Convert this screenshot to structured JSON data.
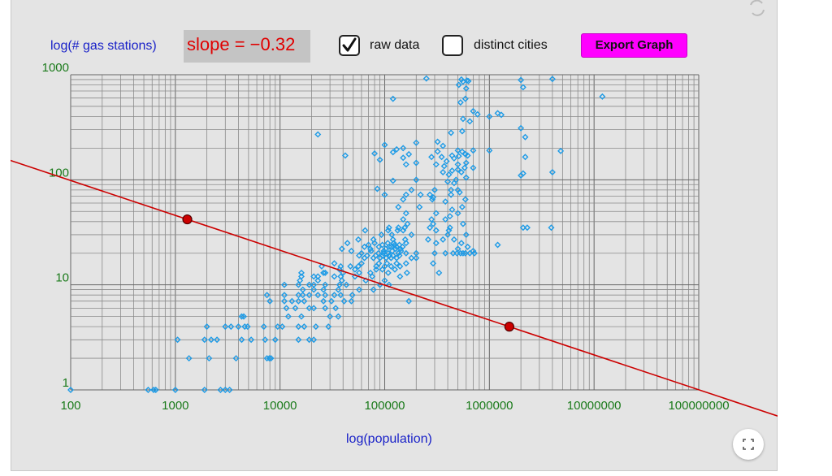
{
  "header": {
    "y_axis_title": "log(# gas stations)",
    "slope_text": "slope = −0.32",
    "raw_data_label": "raw data",
    "raw_data_checked": true,
    "distinct_cities_label": "distinct cities",
    "distinct_cities_checked": false,
    "export_label": "Export Graph"
  },
  "icons": {
    "refresh": "refresh-icon",
    "fullscreen": "fullscreen-icon",
    "check": "check-icon"
  },
  "colors": {
    "line": "#cc0000",
    "points": "#1e9be6",
    "x_ticks": "#1a7a1a",
    "y_ticks": "#1a7a1a",
    "titles": "#1a22c8",
    "slope": "#e00000",
    "export_button": "#ff00ff"
  },
  "chart_data": {
    "type": "scatter",
    "xlabel": "log(population)",
    "ylabel": "log(# gas stations)",
    "xscale": "log",
    "yscale": "log",
    "xlim": [
      100,
      100000000
    ],
    "ylim": [
      1,
      1000
    ],
    "x_ticks": [
      "100",
      "1000",
      "10000",
      "100000",
      "1000000",
      "10000000",
      "100000000"
    ],
    "y_ticks": [
      "1",
      "10",
      "100",
      "1000"
    ],
    "grid": true,
    "slope": -0.32,
    "fit_line": {
      "points": [
        [
          1300,
          42
        ],
        [
          1550000,
          4
        ]
      ]
    },
    "points": [
      [
        100,
        1
      ],
      [
        550,
        1
      ],
      [
        620,
        1
      ],
      [
        650,
        1
      ],
      [
        1000,
        1
      ],
      [
        1900,
        1
      ],
      [
        2700,
        1
      ],
      [
        3000,
        1
      ],
      [
        3300,
        1
      ],
      [
        1350,
        2
      ],
      [
        2100,
        2
      ],
      [
        3800,
        2
      ],
      [
        7500,
        2
      ],
      [
        7900,
        2
      ],
      [
        8200,
        2
      ],
      [
        1050,
        3
      ],
      [
        1900,
        3
      ],
      [
        2200,
        3
      ],
      [
        2500,
        3
      ],
      [
        4300,
        3
      ],
      [
        5300,
        3
      ],
      [
        7200,
        3
      ],
      [
        9000,
        3
      ],
      [
        15000,
        3
      ],
      [
        19000,
        3
      ],
      [
        21000,
        3
      ],
      [
        3000,
        4
      ],
      [
        3400,
        4
      ],
      [
        4000,
        4
      ],
      [
        4600,
        4
      ],
      [
        4900,
        4
      ],
      [
        7000,
        4
      ],
      [
        9500,
        4
      ],
      [
        10500,
        4
      ],
      [
        15000,
        4
      ],
      [
        17000,
        4
      ],
      [
        22000,
        4
      ],
      [
        29000,
        4
      ],
      [
        2000,
        4
      ],
      [
        4500,
        5
      ],
      [
        4300,
        5
      ],
      [
        12000,
        5
      ],
      [
        16000,
        5
      ],
      [
        30000,
        5
      ],
      [
        36000,
        5
      ],
      [
        11500,
        6
      ],
      [
        14000,
        6
      ],
      [
        19000,
        6
      ],
      [
        21000,
        6
      ],
      [
        27000,
        6
      ],
      [
        34000,
        6
      ],
      [
        8000,
        7
      ],
      [
        11000,
        7
      ],
      [
        13000,
        7
      ],
      [
        15000,
        7
      ],
      [
        17000,
        7
      ],
      [
        26000,
        7
      ],
      [
        31000,
        7
      ],
      [
        41000,
        7
      ],
      [
        48000,
        7
      ],
      [
        170000,
        7
      ],
      [
        7500,
        8
      ],
      [
        11000,
        8
      ],
      [
        15000,
        8
      ],
      [
        16500,
        8
      ],
      [
        19000,
        8
      ],
      [
        23000,
        8
      ],
      [
        27000,
        8
      ],
      [
        33000,
        8
      ],
      [
        38000,
        8
      ],
      [
        49000,
        8
      ],
      [
        16500,
        9
      ],
      [
        21000,
        9
      ],
      [
        26000,
        9
      ],
      [
        36000,
        9
      ],
      [
        57000,
        9
      ],
      [
        78000,
        9
      ],
      [
        11000,
        10
      ],
      [
        15000,
        10
      ],
      [
        19000,
        10
      ],
      [
        21000,
        10
      ],
      [
        27000,
        10
      ],
      [
        37000,
        10
      ],
      [
        43000,
        10
      ],
      [
        90000,
        10
      ],
      [
        110000,
        10
      ],
      [
        15500,
        11
      ],
      [
        23000,
        11
      ],
      [
        39000,
        11
      ],
      [
        66000,
        11
      ],
      [
        100000,
        11
      ],
      [
        16000,
        12
      ],
      [
        21000,
        12
      ],
      [
        23000,
        12
      ],
      [
        33000,
        12
      ],
      [
        38000,
        12
      ],
      [
        52000,
        12
      ],
      [
        76000,
        12
      ],
      [
        140000,
        12
      ],
      [
        16000,
        13
      ],
      [
        26000,
        13
      ],
      [
        27000,
        13
      ],
      [
        40000,
        13
      ],
      [
        57000,
        13
      ],
      [
        73000,
        13
      ],
      [
        108000,
        13
      ],
      [
        163000,
        13
      ],
      [
        330000,
        13
      ],
      [
        37000,
        14
      ],
      [
        52000,
        14
      ],
      [
        83000,
        14
      ],
      [
        95000,
        14
      ],
      [
        125000,
        14
      ],
      [
        25000,
        15
      ],
      [
        38000,
        15
      ],
      [
        47000,
        15
      ],
      [
        56000,
        15
      ],
      [
        83000,
        15
      ],
      [
        100000,
        15
      ],
      [
        115000,
        15
      ],
      [
        140000,
        15
      ],
      [
        33000,
        16
      ],
      [
        60000,
        16
      ],
      [
        88000,
        16
      ],
      [
        105000,
        16
      ],
      [
        130000,
        16
      ],
      [
        160000,
        16
      ],
      [
        290000,
        16
      ],
      [
        64000,
        18
      ],
      [
        78000,
        18
      ],
      [
        90000,
        18
      ],
      [
        103000,
        18
      ],
      [
        115000,
        18
      ],
      [
        130000,
        18
      ],
      [
        180000,
        18
      ],
      [
        200000,
        18
      ],
      [
        57000,
        19
      ],
      [
        68000,
        19
      ],
      [
        82000,
        19
      ],
      [
        96000,
        19
      ],
      [
        111000,
        19
      ],
      [
        120000,
        19
      ],
      [
        138000,
        19
      ],
      [
        60000,
        20
      ],
      [
        87000,
        20
      ],
      [
        97000,
        20
      ],
      [
        108000,
        20
      ],
      [
        135000,
        20
      ],
      [
        160000,
        20
      ],
      [
        200000,
        20
      ],
      [
        300000,
        20
      ],
      [
        380000,
        20
      ],
      [
        450000,
        20
      ],
      [
        490000,
        20
      ],
      [
        530000,
        20
      ],
      [
        560000,
        20
      ],
      [
        590000,
        20
      ],
      [
        650000,
        20
      ],
      [
        720000,
        20
      ],
      [
        48000,
        21
      ],
      [
        74000,
        21
      ],
      [
        98000,
        21
      ],
      [
        118000,
        21
      ],
      [
        143000,
        21
      ],
      [
        700000,
        21
      ],
      [
        39000,
        22
      ],
      [
        73000,
        22
      ],
      [
        102000,
        22
      ],
      [
        127000,
        22
      ],
      [
        142000,
        22
      ],
      [
        500000,
        22
      ],
      [
        64000,
        23
      ],
      [
        88000,
        23
      ],
      [
        110000,
        23
      ],
      [
        115000,
        23
      ],
      [
        130000,
        23
      ],
      [
        148000,
        23
      ],
      [
        620000,
        23
      ],
      [
        70000,
        24
      ],
      [
        95000,
        24
      ],
      [
        125000,
        24
      ],
      [
        138000,
        24
      ],
      [
        1200000,
        24
      ],
      [
        44000,
        25
      ],
      [
        80000,
        25
      ],
      [
        107000,
        25
      ],
      [
        122000,
        25
      ],
      [
        160000,
        25
      ],
      [
        310000,
        25
      ],
      [
        540000,
        25
      ],
      [
        56000,
        27
      ],
      [
        78000,
        27
      ],
      [
        120000,
        27
      ],
      [
        157000,
        27
      ],
      [
        260000,
        27
      ],
      [
        360000,
        27
      ],
      [
        460000,
        27
      ],
      [
        93000,
        30
      ],
      [
        117000,
        30
      ],
      [
        180000,
        30
      ],
      [
        400000,
        30
      ],
      [
        600000,
        30
      ],
      [
        65000,
        33
      ],
      [
        108000,
        33
      ],
      [
        133000,
        33
      ],
      [
        150000,
        33
      ],
      [
        310000,
        33
      ],
      [
        410000,
        33
      ],
      [
        110000,
        35
      ],
      [
        135000,
        35
      ],
      [
        155000,
        35
      ],
      [
        270000,
        35
      ],
      [
        420000,
        35
      ],
      [
        2100000,
        35
      ],
      [
        2300000,
        35
      ],
      [
        3900000,
        35
      ],
      [
        165000,
        38
      ],
      [
        290000,
        38
      ],
      [
        560000,
        38
      ],
      [
        150000,
        42
      ],
      [
        280000,
        42
      ],
      [
        380000,
        42
      ],
      [
        160000,
        48
      ],
      [
        310000,
        48
      ],
      [
        500000,
        48
      ],
      [
        135000,
        55
      ],
      [
        215000,
        55
      ],
      [
        550000,
        55
      ],
      [
        440000,
        52
      ],
      [
        420000,
        45
      ],
      [
        150000,
        65
      ],
      [
        285000,
        65
      ],
      [
        590000,
        65
      ],
      [
        380000,
        62
      ],
      [
        100000,
        72
      ],
      [
        160000,
        72
      ],
      [
        220000,
        72
      ],
      [
        270000,
        72
      ],
      [
        430000,
        72
      ],
      [
        290000,
        68
      ],
      [
        180000,
        80
      ],
      [
        300000,
        80
      ],
      [
        430000,
        80
      ],
      [
        500000,
        80
      ],
      [
        520000,
        76
      ],
      [
        85000,
        82
      ],
      [
        120000,
        98
      ],
      [
        200000,
        100
      ],
      [
        400000,
        96
      ],
      [
        460000,
        93
      ],
      [
        480000,
        100
      ],
      [
        600000,
        105
      ],
      [
        2000000,
        110
      ],
      [
        2100000,
        115
      ],
      [
        4000000,
        118
      ],
      [
        360000,
        118
      ],
      [
        540000,
        118
      ],
      [
        410000,
        112
      ],
      [
        440000,
        122
      ],
      [
        500000,
        125
      ],
      [
        580000,
        130
      ],
      [
        700000,
        130
      ],
      [
        370000,
        135
      ],
      [
        500000,
        140
      ],
      [
        600000,
        145
      ],
      [
        160000,
        140
      ],
      [
        200000,
        145
      ],
      [
        310000,
        140
      ],
      [
        390000,
        150
      ],
      [
        460000,
        160
      ],
      [
        510000,
        168
      ],
      [
        590000,
        175
      ],
      [
        90000,
        155
      ],
      [
        150000,
        162
      ],
      [
        280000,
        165
      ],
      [
        350000,
        165
      ],
      [
        440000,
        170
      ],
      [
        550000,
        185
      ],
      [
        620000,
        170
      ],
      [
        2200000,
        165
      ],
      [
        120000,
        183
      ],
      [
        170000,
        175
      ],
      [
        320000,
        186
      ],
      [
        500000,
        190
      ],
      [
        700000,
        190
      ],
      [
        1000000,
        190
      ],
      [
        4800000,
        188
      ],
      [
        42000,
        170
      ],
      [
        80000,
        178
      ],
      [
        130000,
        195
      ],
      [
        150000,
        200
      ],
      [
        200000,
        225
      ],
      [
        320000,
        230
      ],
      [
        360000,
        210
      ],
      [
        100000,
        215
      ],
      [
        23000,
        270
      ],
      [
        430000,
        280
      ],
      [
        550000,
        290
      ],
      [
        2000000,
        310
      ],
      [
        2200000,
        255
      ],
      [
        560000,
        380
      ],
      [
        650000,
        360
      ],
      [
        770000,
        420
      ],
      [
        1000000,
        400
      ],
      [
        1200000,
        430
      ],
      [
        1300000,
        415
      ],
      [
        120000,
        590
      ],
      [
        700000,
        450
      ],
      [
        530000,
        545
      ],
      [
        590000,
        590
      ],
      [
        12000000,
        620
      ],
      [
        600000,
        740
      ],
      [
        510000,
        800
      ],
      [
        560000,
        860
      ],
      [
        610000,
        880
      ],
      [
        630000,
        870
      ],
      [
        250000,
        920
      ],
      [
        540000,
        900
      ],
      [
        2000000,
        890
      ],
      [
        4000000,
        910
      ],
      [
        2100000,
        760
      ]
    ]
  }
}
